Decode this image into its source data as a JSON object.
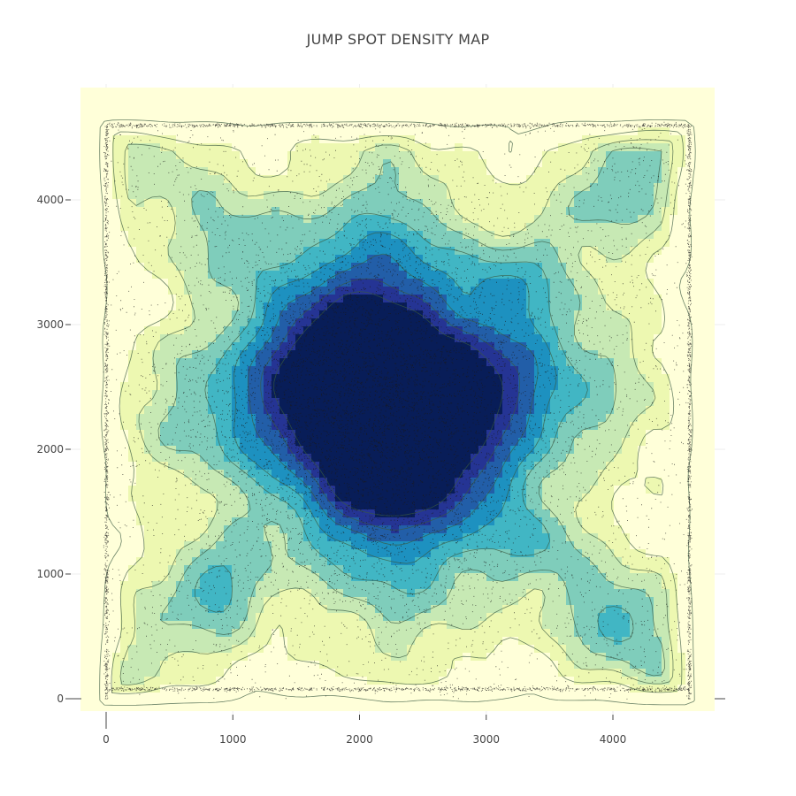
{
  "chart_data": {
    "type": "contour",
    "title": "JUMP SPOT DENSITY MAP",
    "xlabel": "",
    "ylabel": "",
    "xlim": [
      -200,
      4800
    ],
    "ylim": [
      -100,
      4850
    ],
    "x_ticks": [
      0,
      1000,
      2000,
      3000,
      4000
    ],
    "y_ticks": [
      0,
      1000,
      2000,
      3000,
      4000
    ],
    "colorscale": [
      "#ffffd9",
      "#edf8b1",
      "#c7e9b4",
      "#7fcdbb",
      "#41b6c4",
      "#1d91c0",
      "#225ea8",
      "#253494",
      "#081d58"
    ],
    "density_hotspots": [
      {
        "x": 2050,
        "y": 2500,
        "density": 1.0
      },
      {
        "x": 2000,
        "y": 1900,
        "density": 0.8
      },
      {
        "x": 1700,
        "y": 2900,
        "density": 0.7
      },
      {
        "x": 2600,
        "y": 2400,
        "density": 0.7
      },
      {
        "x": 3150,
        "y": 3300,
        "density": 0.5
      },
      {
        "x": 2850,
        "y": 1750,
        "density": 0.55
      },
      {
        "x": 3350,
        "y": 1300,
        "density": 0.35
      },
      {
        "x": 850,
        "y": 900,
        "density": 0.45
      },
      {
        "x": 4050,
        "y": 650,
        "density": 0.45
      },
      {
        "x": 1100,
        "y": 3650,
        "density": 0.3
      },
      {
        "x": 4050,
        "y": 4150,
        "density": 0.3
      }
    ],
    "grid": true,
    "legend": "none"
  }
}
